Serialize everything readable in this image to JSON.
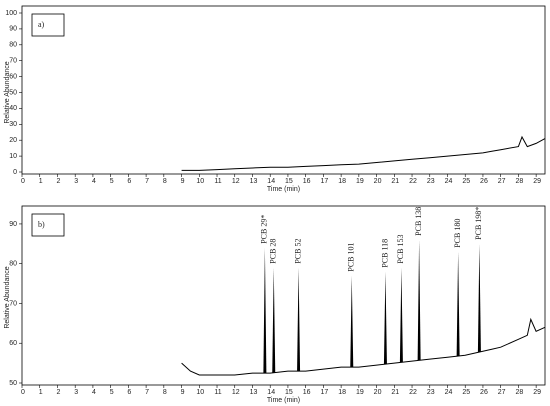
{
  "chart_data": [
    {
      "type": "line",
      "label": "a)",
      "ylabel": "Relative Abundance",
      "xlabel": "Time (min)",
      "color": "#000000",
      "x": [
        9,
        10,
        11,
        12,
        13,
        14,
        15,
        16,
        17,
        18,
        19,
        20,
        21,
        22,
        23,
        24,
        25,
        26,
        26.5,
        27,
        28,
        28.2,
        28.5,
        29,
        29.5
      ],
      "values": [
        1,
        1,
        1.5,
        2,
        2.5,
        3,
        3,
        3.5,
        4,
        4.5,
        5,
        6,
        7,
        8,
        9,
        10,
        11,
        12,
        13,
        14,
        16,
        22,
        16,
        18,
        21
      ],
      "xlim": [
        0,
        29.5
      ],
      "ylim": [
        0,
        100
      ],
      "xticks": [
        0,
        1,
        2,
        3,
        4,
        5,
        6,
        7,
        8,
        9,
        10,
        11,
        12,
        13,
        14,
        15,
        16,
        17,
        18,
        19,
        20,
        21,
        22,
        23,
        24,
        25,
        26,
        27,
        28,
        29
      ],
      "yticks": [
        0,
        10,
        20,
        30,
        40,
        50,
        60,
        70,
        80,
        90,
        100
      ]
    },
    {
      "type": "line",
      "label": "b)",
      "ylabel": "Relative Abundance",
      "xlabel": "Time (min)",
      "color": "#000000",
      "x": [
        9,
        9.5,
        10,
        11,
        12,
        13,
        14,
        15,
        16,
        17,
        18,
        19,
        20,
        21,
        22,
        23,
        24,
        25,
        26,
        26.5,
        27,
        28,
        28.5,
        28.7,
        29,
        29.5
      ],
      "values": [
        55,
        53,
        52,
        52,
        52,
        52.5,
        52.5,
        53,
        53,
        53.5,
        54,
        54,
        54.5,
        55,
        55.5,
        56,
        56.5,
        57,
        58,
        58.5,
        59,
        61,
        62,
        66,
        63,
        64
      ],
      "peaks": [
        {
          "x": 13.7,
          "value": 84,
          "label": "PCB 29*"
        },
        {
          "x": 14.2,
          "value": 79,
          "label": "PCB 28"
        },
        {
          "x": 15.6,
          "value": 79,
          "label": "PCB 52"
        },
        {
          "x": 18.6,
          "value": 77,
          "label": "PCB 101"
        },
        {
          "x": 20.5,
          "value": 78,
          "label": "PCB 118"
        },
        {
          "x": 21.4,
          "value": 79,
          "label": "PCB 153"
        },
        {
          "x": 22.4,
          "value": 86,
          "label": "PCB 138"
        },
        {
          "x": 24.6,
          "value": 83,
          "label": "PCB 180"
        },
        {
          "x": 25.8,
          "value": 85,
          "label": "PCB 198*"
        }
      ],
      "xlim": [
        0,
        29.5
      ],
      "ylim": [
        50,
        93
      ],
      "xticks": [
        0,
        1,
        2,
        3,
        4,
        5,
        6,
        7,
        8,
        9,
        10,
        11,
        12,
        13,
        14,
        15,
        16,
        17,
        18,
        19,
        20,
        21,
        22,
        23,
        24,
        25,
        26,
        27,
        28,
        29
      ],
      "yticks": [
        50,
        60,
        70,
        80,
        90
      ]
    }
  ]
}
